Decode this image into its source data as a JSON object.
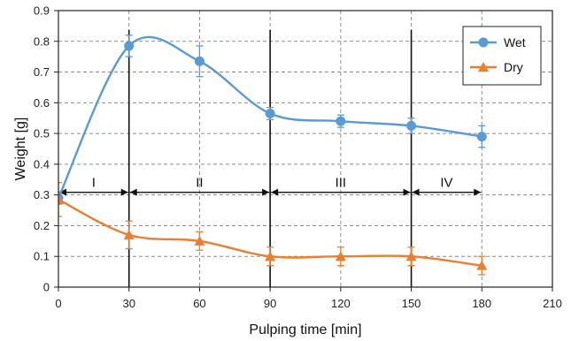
{
  "chart_data": {
    "type": "line",
    "xlabel": "Pulping time [min]",
    "ylabel": "Weight [g]",
    "xlim": [
      0,
      210
    ],
    "ylim": [
      0,
      0.9
    ],
    "x_ticks": [
      0,
      30,
      60,
      90,
      120,
      150,
      180,
      210
    ],
    "y_ticks": [
      0,
      0.1,
      0.2,
      0.3,
      0.4,
      0.5,
      0.6,
      0.7,
      0.8,
      0.9
    ],
    "grid": true,
    "legend_position": "top-right",
    "x": [
      0,
      30,
      60,
      90,
      120,
      150,
      180
    ],
    "series": [
      {
        "name": "Wet",
        "color": "#5b9bd5",
        "marker": "circle",
        "values": [
          0.29,
          0.785,
          0.735,
          0.565,
          0.54,
          0.525,
          0.49
        ],
        "errors": [
          0.02,
          0.035,
          0.05,
          0.02,
          0.02,
          0.025,
          0.035
        ]
      },
      {
        "name": "Dry",
        "color": "#ed7d31",
        "marker": "triangle",
        "values": [
          0.285,
          0.17,
          0.15,
          0.1,
          0.1,
          0.1,
          0.07
        ],
        "errors": [
          0.055,
          0.045,
          0.03,
          0.03,
          0.03,
          0.03,
          0.03
        ]
      }
    ],
    "phase_boundaries": [
      30,
      90,
      150
    ],
    "phases": [
      {
        "label": "I",
        "from": 0,
        "to": 30
      },
      {
        "label": "II",
        "from": 30,
        "to": 90
      },
      {
        "label": "III",
        "from": 90,
        "to": 150
      },
      {
        "label": "IV",
        "from": 150,
        "to": 180
      }
    ],
    "phase_arrow_y": 0.3
  }
}
